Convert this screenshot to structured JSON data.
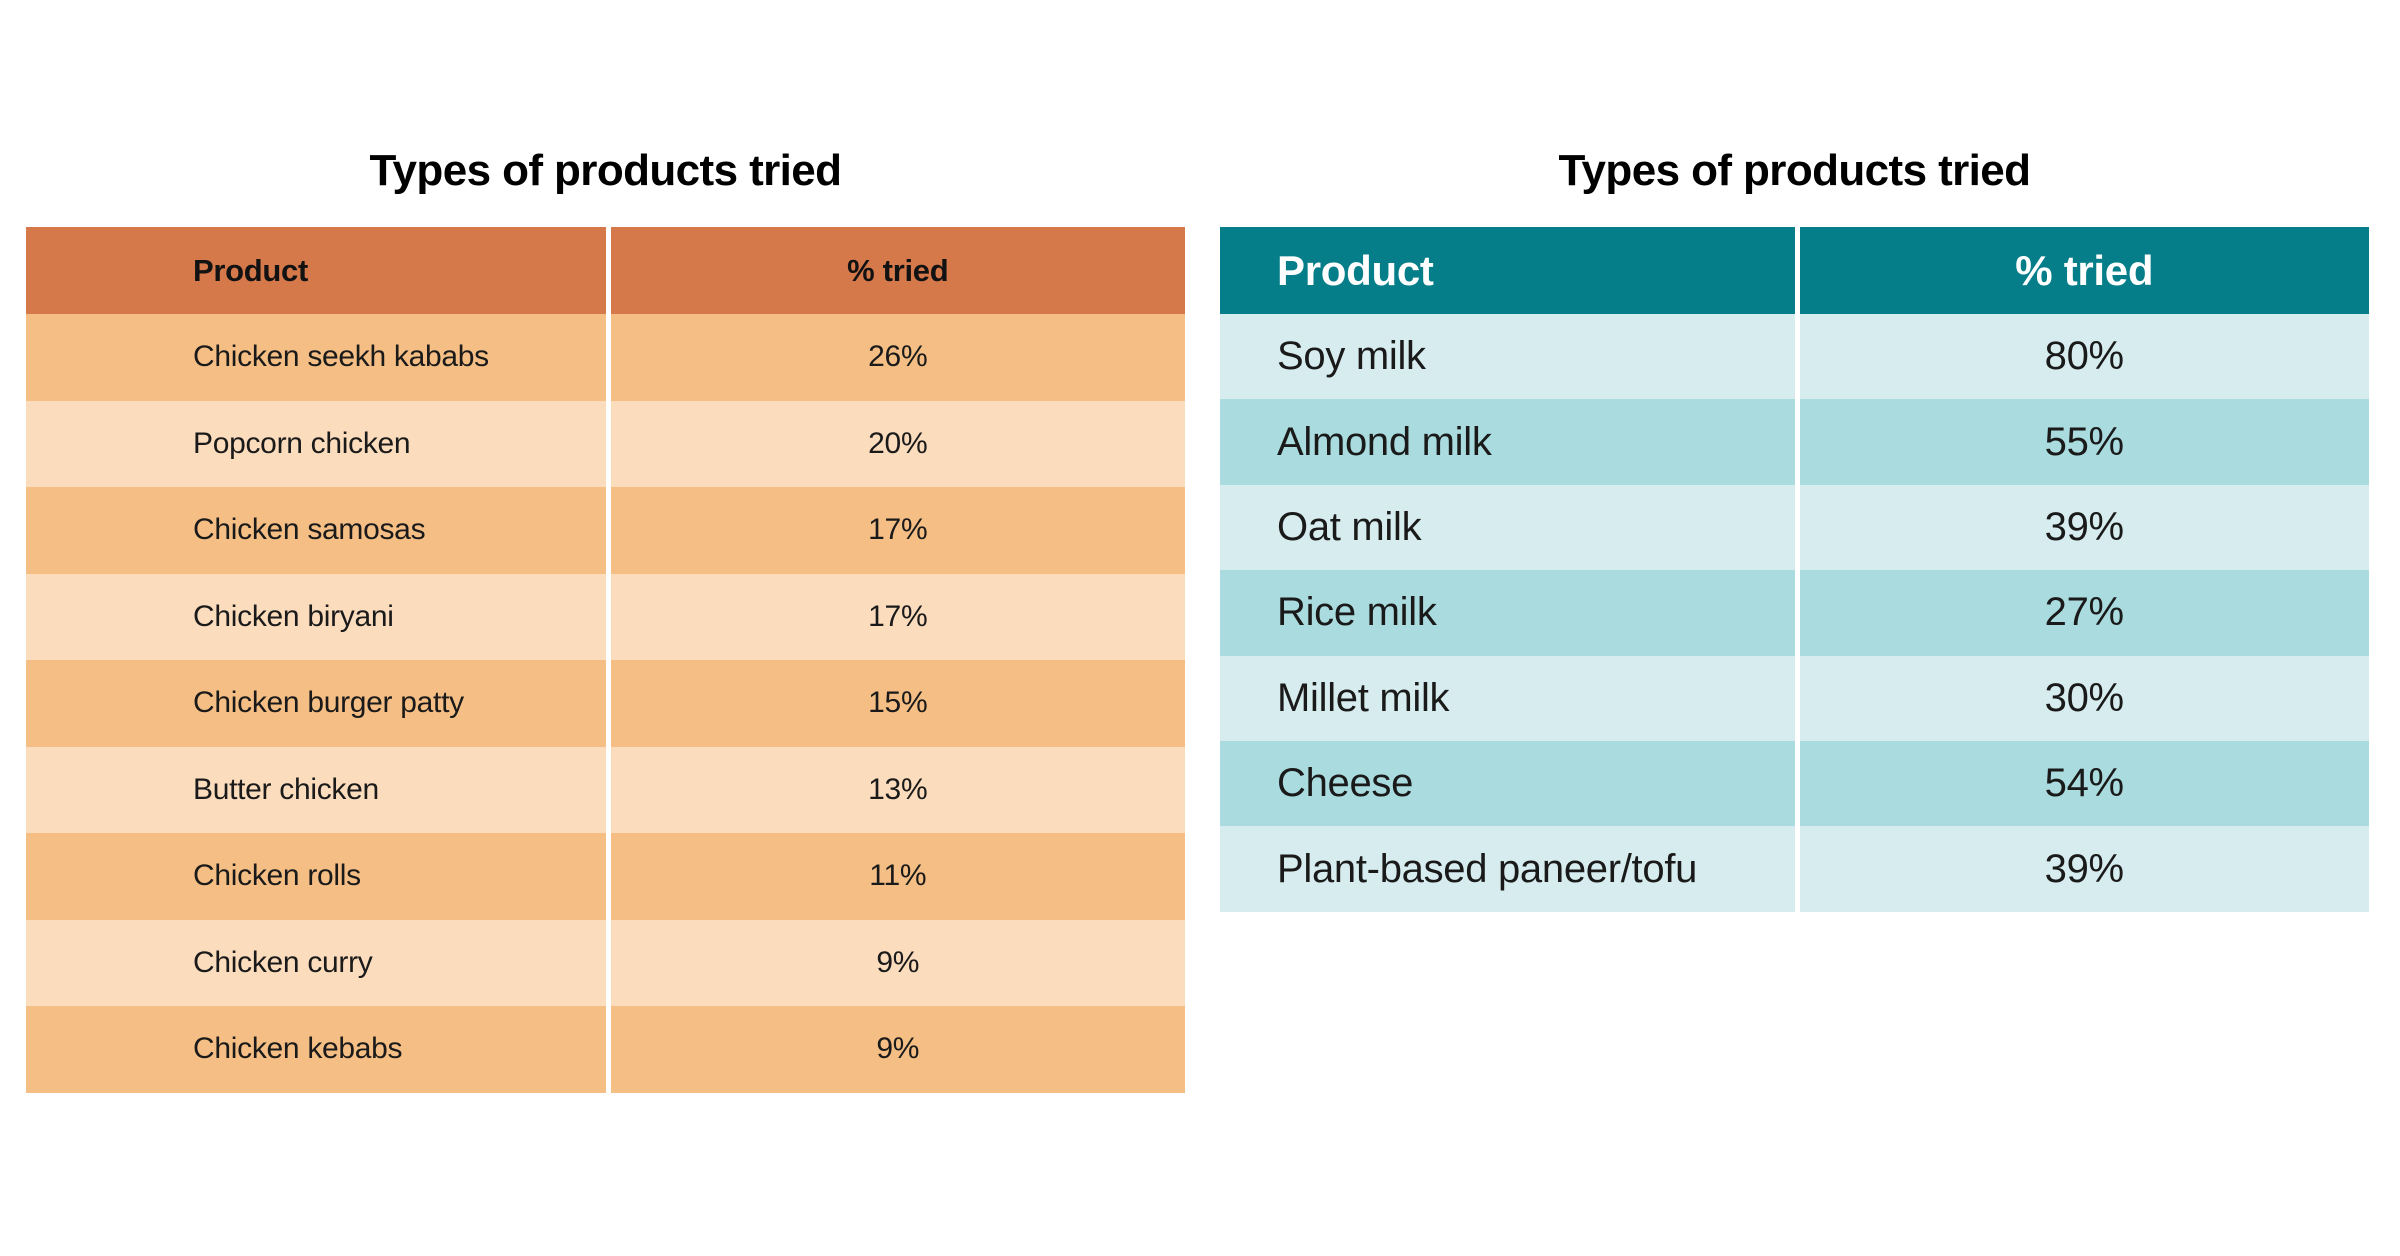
{
  "page": {
    "background": "#FFFFFF"
  },
  "tables": [
    {
      "id": "chicken-products",
      "title": "Types of products tried",
      "columns": [
        "Product",
        "% tried"
      ],
      "rows": [
        [
          "Chicken seekh kababs",
          "26%"
        ],
        [
          "Popcorn chicken",
          "20%"
        ],
        [
          "Chicken samosas",
          "17%"
        ],
        [
          "Chicken biryani",
          "17%"
        ],
        [
          "Chicken burger patty",
          "15%"
        ],
        [
          "Butter chicken",
          "13%"
        ],
        [
          "Chicken rolls",
          "11%"
        ],
        [
          "Chicken curry",
          "9%"
        ],
        [
          "Chicken kebabs",
          "9%"
        ]
      ],
      "theme": {
        "header_bg": "#D5794B",
        "header_text": "#121212",
        "row_odd_bg": "#F5BE84",
        "row_even_bg": "#FBDCBD",
        "body_text": "#1A1A1A",
        "divider": "#FFFFFF"
      }
    },
    {
      "id": "plant-based-products",
      "title": "Types of products tried",
      "columns": [
        "Product",
        "% tried"
      ],
      "rows": [
        [
          "Soy milk",
          "80%"
        ],
        [
          "Almond milk",
          "55%"
        ],
        [
          "Oat milk",
          "39%"
        ],
        [
          "Rice milk",
          "27%"
        ],
        [
          "Millet milk",
          "30%"
        ],
        [
          "Cheese",
          "54%"
        ],
        [
          "Plant-based paneer/tofu",
          "39%"
        ]
      ],
      "theme": {
        "header_bg": "#057E8A",
        "header_text": "#FFFFFF",
        "row_odd_bg": "#D7ECEE",
        "row_even_bg": "#A9DBDF",
        "body_text": "#1A1A1A",
        "divider": "#FFFFFF"
      }
    }
  ],
  "chart_data": [
    {
      "type": "table",
      "title": "Types of products tried",
      "columns": [
        "Product",
        "% tried"
      ],
      "categories": [
        "Chicken seekh kababs",
        "Popcorn chicken",
        "Chicken samosas",
        "Chicken biryani",
        "Chicken burger patty",
        "Butter chicken",
        "Chicken rolls",
        "Chicken curry",
        "Chicken kebabs"
      ],
      "values": [
        26,
        20,
        17,
        17,
        15,
        13,
        11,
        9,
        9
      ],
      "unit": "%"
    },
    {
      "type": "table",
      "title": "Types of products tried",
      "columns": [
        "Product",
        "% tried"
      ],
      "categories": [
        "Soy milk",
        "Almond milk",
        "Oat milk",
        "Rice milk",
        "Millet milk",
        "Cheese",
        "Plant-based paneer/tofu"
      ],
      "values": [
        80,
        55,
        39,
        27,
        30,
        54,
        39
      ],
      "unit": "%"
    }
  ]
}
